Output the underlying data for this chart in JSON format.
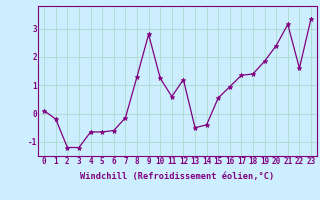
{
  "x": [
    0,
    1,
    2,
    3,
    4,
    5,
    6,
    7,
    8,
    9,
    10,
    11,
    12,
    13,
    14,
    15,
    16,
    17,
    18,
    19,
    20,
    21,
    22,
    23
  ],
  "y": [
    0.1,
    -0.2,
    -1.2,
    -1.2,
    -0.65,
    -0.65,
    -0.6,
    -0.15,
    1.3,
    2.8,
    1.25,
    0.6,
    1.2,
    -0.5,
    -0.4,
    0.55,
    0.95,
    1.35,
    1.4,
    1.85,
    2.4,
    3.15,
    1.6,
    3.35
  ],
  "line_color": "#800080",
  "marker": "*",
  "marker_size": 3.5,
  "bg_color": "#cceeff",
  "grid_color": "#aaddcc",
  "xlabel": "Windchill (Refroidissement éolien,°C)",
  "xlabel_color": "#800080",
  "tick_color": "#800080",
  "ylim": [
    -1.5,
    3.8
  ],
  "yticks": [
    -1,
    0,
    1,
    2,
    3
  ],
  "xlim": [
    -0.5,
    23.5
  ],
  "tick_fontsize": 5.5,
  "xlabel_fontsize": 6.2,
  "linewidth": 0.9
}
